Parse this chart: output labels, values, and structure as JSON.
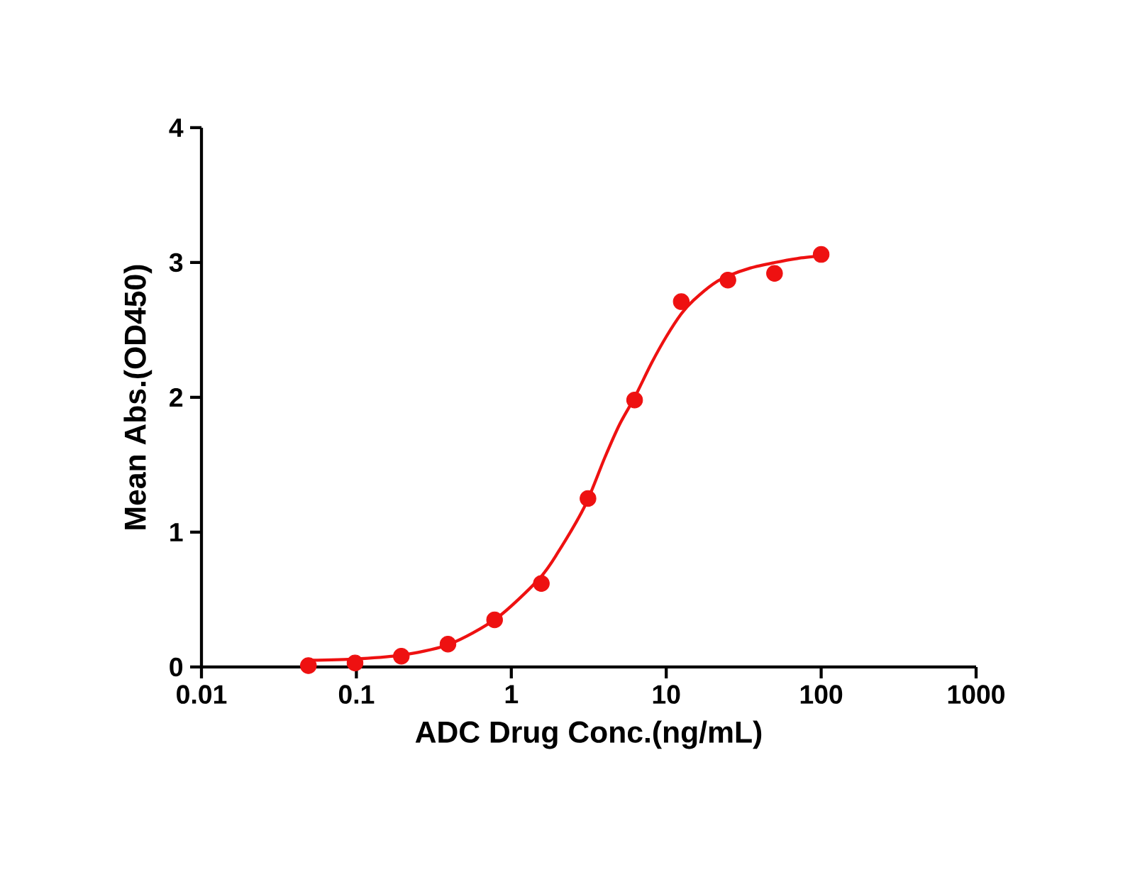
{
  "chart_data": {
    "type": "scatter",
    "xlabel": "ADC Drug  Conc.(ng/mL)",
    "ylabel": "Mean Abs.(OD450)",
    "log": "x",
    "xlim": [
      0.01,
      1000
    ],
    "xticks": [
      0.01,
      0.1,
      1,
      10,
      100,
      1000
    ],
    "ylim": [
      0,
      4
    ],
    "yticks": [
      0,
      1,
      2,
      3,
      4
    ],
    "series": [
      {
        "marker": "circle",
        "color": "#ee1111",
        "x": [
          0.049,
          0.098,
          0.195,
          0.39,
          0.78,
          1.5625,
          3.125,
          6.25,
          12.5,
          25,
          50,
          100
        ],
        "values": [
          0.01,
          0.03,
          0.08,
          0.17,
          0.35,
          0.62,
          1.25,
          1.98,
          2.71,
          2.87,
          2.92,
          3.06
        ]
      },
      {
        "type": "line",
        "color": "#ee1111",
        "x": [
          0.049,
          0.1,
          0.2,
          0.4,
          0.8,
          1.5,
          2,
          3,
          4,
          5,
          6.25,
          8,
          10,
          12.5,
          15,
          20,
          25,
          35,
          50,
          70,
          100
        ],
        "values": [
          0.05,
          0.06,
          0.09,
          0.17,
          0.36,
          0.65,
          0.85,
          1.2,
          1.55,
          1.8,
          2.0,
          2.25,
          2.45,
          2.62,
          2.72,
          2.84,
          2.9,
          2.96,
          3.0,
          3.03,
          3.05
        ]
      }
    ]
  }
}
